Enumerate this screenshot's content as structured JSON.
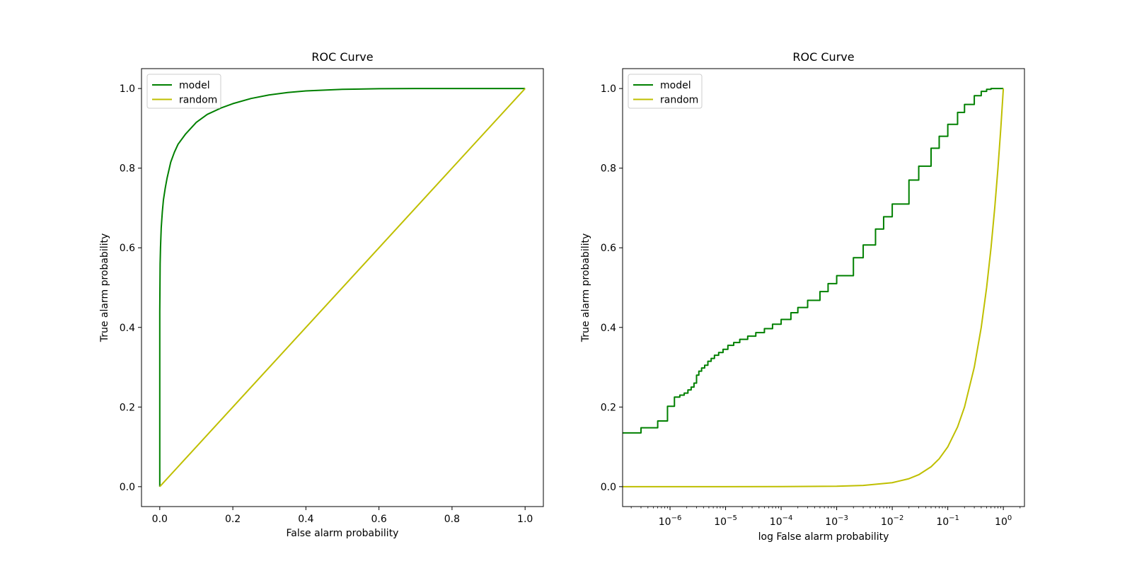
{
  "figure": {
    "background": "#ffffff"
  },
  "chart_data": [
    {
      "type": "line",
      "title": "ROC Curve",
      "xlabel": "False alarm probability",
      "ylabel": "True alarm probability",
      "xscale": "linear",
      "xlim": [
        -0.05,
        1.05
      ],
      "ylim": [
        -0.05,
        1.05
      ],
      "xticks": [
        0.0,
        0.2,
        0.4,
        0.6,
        0.8,
        1.0
      ],
      "xtick_labels": [
        "0.0",
        "0.2",
        "0.4",
        "0.6",
        "0.8",
        "1.0"
      ],
      "yticks": [
        0.0,
        0.2,
        0.4,
        0.6,
        0.8,
        1.0
      ],
      "ytick_labels": [
        "0.0",
        "0.2",
        "0.4",
        "0.6",
        "0.8",
        "1.0"
      ],
      "grid": false,
      "legend": "upper-left",
      "series": [
        {
          "name": "model",
          "color": "#008000",
          "x": [
            0,
            0,
            0.001,
            0.002,
            0.004,
            0.007,
            0.01,
            0.015,
            0.02,
            0.03,
            0.04,
            0.05,
            0.07,
            0.1,
            0.13,
            0.17,
            0.2,
            0.25,
            0.3,
            0.35,
            0.4,
            0.5,
            0.6,
            0.7,
            0.8,
            0.9,
            1.0
          ],
          "y": [
            0,
            0.44,
            0.56,
            0.6,
            0.65,
            0.69,
            0.72,
            0.75,
            0.775,
            0.815,
            0.84,
            0.86,
            0.885,
            0.915,
            0.935,
            0.952,
            0.962,
            0.975,
            0.984,
            0.99,
            0.994,
            0.998,
            0.9995,
            1.0,
            1.0,
            1.0,
            1.0
          ]
        },
        {
          "name": "random",
          "color": "#bfbf00",
          "x": [
            0,
            1
          ],
          "y": [
            0,
            1
          ]
        }
      ]
    },
    {
      "type": "line",
      "title": "ROC Curve",
      "xlabel": "log False alarm probability",
      "ylabel": "True alarm probability",
      "xscale": "log",
      "xlim": [
        1.4e-07,
        2.4
      ],
      "ylim": [
        -0.05,
        1.05
      ],
      "xticks": [
        1e-06,
        1e-05,
        0.0001,
        0.001,
        0.01,
        0.1,
        1
      ],
      "xtick_labels": [
        {
          "base": "10",
          "exp": "−6"
        },
        {
          "base": "10",
          "exp": "−5"
        },
        {
          "base": "10",
          "exp": "−4"
        },
        {
          "base": "10",
          "exp": "−3"
        },
        {
          "base": "10",
          "exp": "−2"
        },
        {
          "base": "10",
          "exp": "−1"
        },
        {
          "base": "10",
          "exp": "0"
        }
      ],
      "yticks": [
        0.0,
        0.2,
        0.4,
        0.6,
        0.8,
        1.0
      ],
      "ytick_labels": [
        "0.0",
        "0.2",
        "0.4",
        "0.6",
        "0.8",
        "1.0"
      ],
      "grid": false,
      "legend": "upper-left",
      "series": [
        {
          "name": "model",
          "color": "#008000",
          "step": true,
          "x": [
            1.4e-07,
            3e-07,
            6e-07,
            9e-07,
            1.2e-06,
            1.5e-06,
            1.8e-06,
            2.1e-06,
            2.4e-06,
            2.7e-06,
            3e-06,
            3.3e-06,
            3.7e-06,
            4.2e-06,
            4.8e-06,
            5.5e-06,
            6.3e-06,
            7.5e-06,
            9e-06,
            1.1e-05,
            1.4e-05,
            1.8e-05,
            2.5e-05,
            3.5e-05,
            5e-05,
            7e-05,
            0.0001,
            0.00015,
            0.0002,
            0.0003,
            0.0005,
            0.0007,
            0.001,
            0.002,
            0.003,
            0.005,
            0.007,
            0.01,
            0.02,
            0.03,
            0.05,
            0.07,
            0.1,
            0.15,
            0.2,
            0.3,
            0.4,
            0.5,
            0.6,
            0.7,
            0.8,
            1.0
          ],
          "y": [
            0.135,
            0.148,
            0.165,
            0.202,
            0.225,
            0.23,
            0.235,
            0.243,
            0.25,
            0.26,
            0.28,
            0.29,
            0.298,
            0.305,
            0.315,
            0.322,
            0.33,
            0.337,
            0.345,
            0.355,
            0.362,
            0.37,
            0.378,
            0.387,
            0.397,
            0.408,
            0.42,
            0.437,
            0.45,
            0.468,
            0.49,
            0.51,
            0.53,
            0.575,
            0.607,
            0.647,
            0.678,
            0.71,
            0.77,
            0.805,
            0.85,
            0.88,
            0.91,
            0.94,
            0.96,
            0.982,
            0.993,
            0.998,
            1.0,
            1.0,
            1.0,
            1.0
          ]
        },
        {
          "name": "random",
          "color": "#bfbf00",
          "x": [
            1.4e-07,
            1e-06,
            1e-05,
            0.0001,
            0.001,
            0.003,
            0.01,
            0.02,
            0.03,
            0.05,
            0.07,
            0.1,
            0.15,
            0.2,
            0.3,
            0.4,
            0.5,
            0.6,
            0.7,
            0.8,
            0.9,
            1.0
          ],
          "y": [
            1.4e-07,
            1e-06,
            1e-05,
            0.0001,
            0.001,
            0.003,
            0.01,
            0.02,
            0.03,
            0.05,
            0.07,
            0.1,
            0.15,
            0.2,
            0.3,
            0.4,
            0.5,
            0.6,
            0.7,
            0.8,
            0.9,
            1.0
          ]
        }
      ]
    }
  ]
}
